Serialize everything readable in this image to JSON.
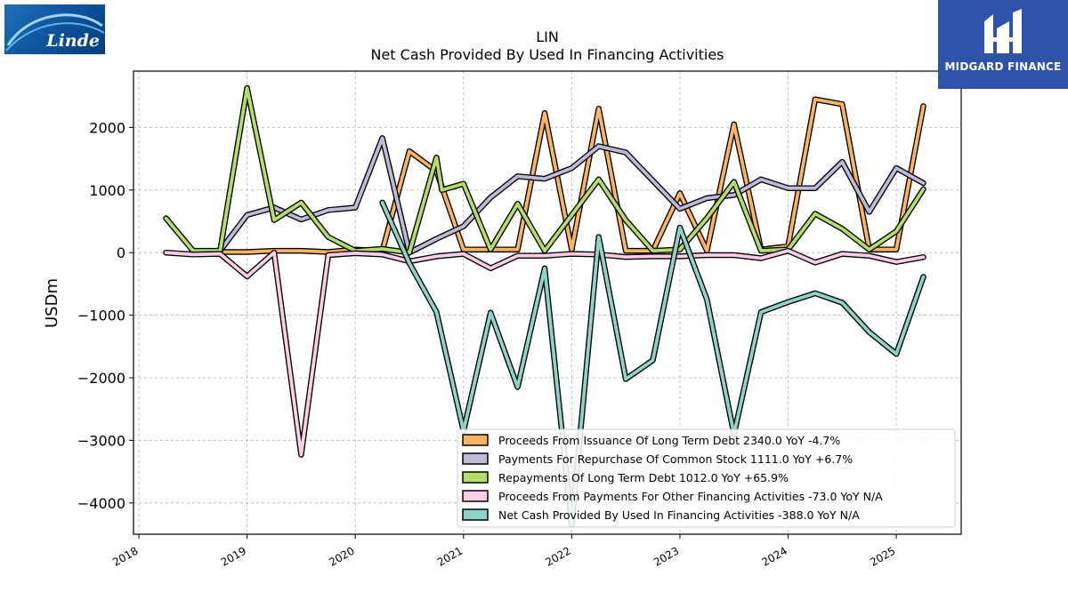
{
  "chart_data": {
    "type": "line",
    "title": "LIN",
    "subtitle": "Net Cash Provided By Used In Financing Activities",
    "ylabel": "USDm",
    "xlabel": "",
    "ylim": [
      -4500,
      2900
    ],
    "xlim": [
      2017.95,
      2025.6
    ],
    "yticks": [
      2000,
      1000,
      0,
      -1000,
      -2000,
      -3000,
      -4000
    ],
    "ytick_labels": [
      "2000",
      "1000",
      "0",
      "−1000",
      "−2000",
      "−3000",
      "−4000"
    ],
    "xticks": [
      2018,
      2019,
      2020,
      2021,
      2022,
      2023,
      2024,
      2025
    ],
    "xtick_labels": [
      "2018",
      "2019",
      "2020",
      "2021",
      "2022",
      "2023",
      "2024",
      "2025"
    ],
    "grid": true,
    "legend_position": "lower-right",
    "series": [
      {
        "name": "Proceeds From Issuance Of Long Term Debt",
        "legend_label": "Proceeds From Issuance Of Long Term Debt  2340.0 YoY -4.7%",
        "color": "#fdb462",
        "x": [
          2018.75,
          2019.0,
          2019.25,
          2019.5,
          2019.75,
          2020.0,
          2020.25,
          2020.5,
          2020.75,
          2021.0,
          2021.25,
          2021.5,
          2021.75,
          2022.0,
          2022.25,
          2022.5,
          2022.75,
          2023.0,
          2023.25,
          2023.5,
          2023.75,
          2024.0,
          2024.25,
          2024.5,
          2024.75,
          2025.0,
          2025.25
        ],
        "values": [
          10,
          10,
          30,
          30,
          10,
          50,
          30,
          1620,
          1300,
          50,
          50,
          50,
          2230,
          50,
          2300,
          30,
          30,
          950,
          30,
          2050,
          50,
          100,
          2450,
          2370,
          50,
          50,
          2340
        ]
      },
      {
        "name": "Payments For Repurchase Of Common Stock",
        "legend_label": "Payments For Repurchase Of Common Stock  1111.0 YoY +6.7%",
        "color": "#bebada",
        "x": [
          2018.75,
          2019.0,
          2019.25,
          2019.5,
          2019.75,
          2020.0,
          2020.25,
          2020.5,
          2020.75,
          2021.0,
          2021.25,
          2021.5,
          2021.75,
          2022.0,
          2022.25,
          2022.5,
          2022.75,
          2023.0,
          2023.25,
          2023.5,
          2023.75,
          2024.0,
          2024.25,
          2024.5,
          2024.75,
          2025.0,
          2025.25
        ],
        "values": [
          30,
          600,
          720,
          530,
          680,
          720,
          1830,
          0,
          220,
          420,
          880,
          1220,
          1180,
          1350,
          1700,
          1600,
          1150,
          700,
          870,
          920,
          1170,
          1030,
          1030,
          1450,
          650,
          1350,
          1111
        ]
      },
      {
        "name": "Repayments Of Long Term Debt",
        "legend_label": "Repayments Of Long Term Debt  1012.0 YoY +65.9%",
        "color": "#b3de69",
        "x": [
          2018.25,
          2018.5,
          2018.75,
          2019.0,
          2019.25,
          2019.5,
          2019.75,
          2020.0,
          2020.25,
          2020.5,
          2020.75,
          2020.8,
          2021.0,
          2021.25,
          2021.5,
          2021.75,
          2022.0,
          2022.25,
          2022.5,
          2022.75,
          2023.0,
          2023.25,
          2023.5,
          2023.75,
          2024.0,
          2024.25,
          2024.5,
          2024.75,
          2025.0,
          2025.25
        ],
        "values": [
          550,
          30,
          30,
          2630,
          520,
          800,
          250,
          30,
          60,
          0,
          1520,
          1000,
          1100,
          50,
          780,
          30,
          600,
          1170,
          520,
          30,
          50,
          550,
          1130,
          30,
          50,
          620,
          380,
          50,
          340,
          1012
        ]
      },
      {
        "name": "Proceeds From Payments For Other Financing Activities",
        "legend_label": "Proceeds From Payments For Other Financing Activities  -73.0 YoY N/A",
        "color": "#fccde5",
        "x": [
          2018.25,
          2018.5,
          2018.75,
          2019.0,
          2019.25,
          2019.5,
          2019.75,
          2020.0,
          2020.25,
          2020.5,
          2020.75,
          2021.0,
          2021.25,
          2021.5,
          2021.75,
          2022.0,
          2022.25,
          2022.5,
          2022.75,
          2023.0,
          2023.25,
          2023.5,
          2023.75,
          2024.0,
          2024.25,
          2024.5,
          2024.75,
          2025.0,
          2025.25
        ],
        "values": [
          0,
          -30,
          -20,
          -380,
          0,
          -3230,
          -40,
          -10,
          -30,
          -140,
          -60,
          -20,
          -250,
          -50,
          -50,
          -20,
          -30,
          -70,
          -60,
          -60,
          -40,
          -40,
          -90,
          30,
          -160,
          -20,
          -50,
          -150,
          -73
        ]
      },
      {
        "name": "Net Cash Provided By Used In Financing Activities",
        "legend_label": "Net Cash Provided By Used In Financing Activities  -388.0 YoY N/A",
        "color": "#8dd3c7",
        "x": [
          2020.25,
          2020.5,
          2020.75,
          2021.0,
          2021.25,
          2021.5,
          2021.75,
          2022.0,
          2022.25,
          2022.5,
          2022.75,
          2023.0,
          2023.25,
          2023.5,
          2023.75,
          2024.0,
          2024.25,
          2024.5,
          2024.75,
          2025.0,
          2025.25
        ],
        "values": [
          800,
          -170,
          -950,
          -2850,
          -960,
          -2150,
          -250,
          -4350,
          250,
          -2020,
          -1720,
          400,
          -750,
          -2900,
          -950,
          -790,
          -650,
          -800,
          -1270,
          -1620,
          -388
        ]
      }
    ]
  },
  "logos": {
    "left": {
      "icon": "linde-logo",
      "text": "Linde"
    },
    "right": {
      "icon": "midgard-finance-logo",
      "text": "MIDGARD FINANCE"
    }
  }
}
